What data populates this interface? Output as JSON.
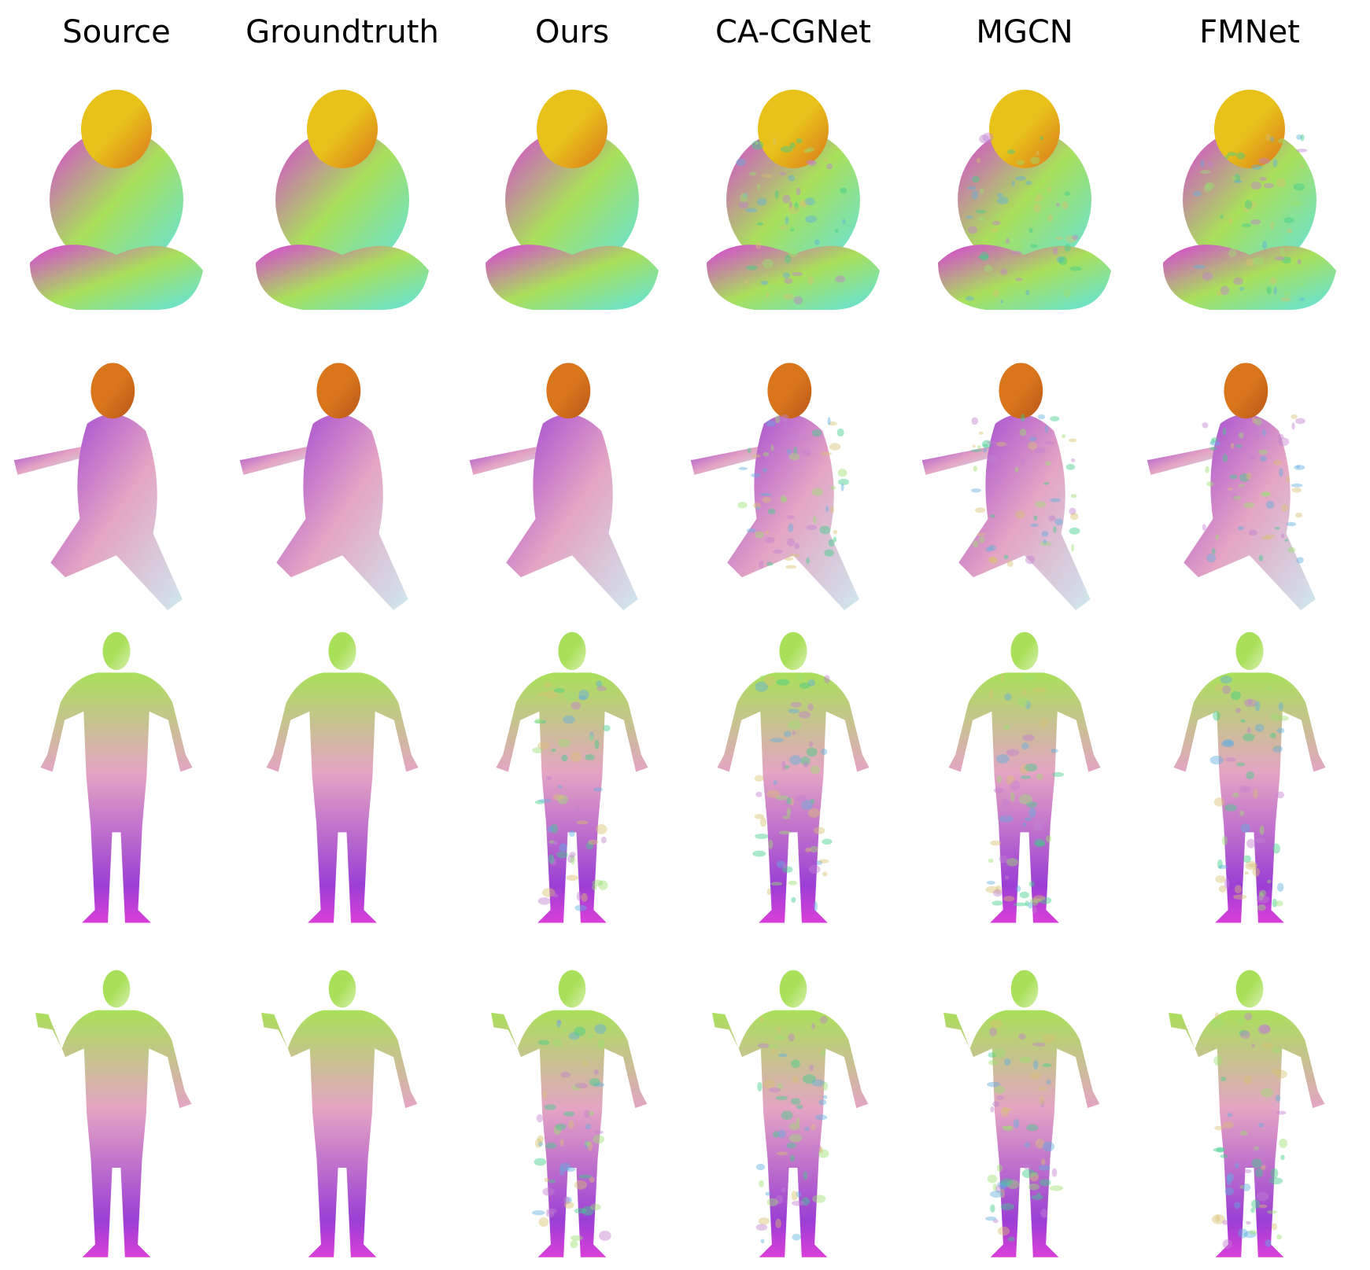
{
  "figure": {
    "columns": [
      {
        "label": "Source"
      },
      {
        "label": "Groundtruth"
      },
      {
        "label": "Ours"
      },
      {
        "label": "CA-CGNet"
      },
      {
        "label": "MGCN"
      },
      {
        "label": "FMNet"
      }
    ],
    "rows": [
      {
        "pose": "sitting-crossed-legs"
      },
      {
        "pose": "kneeling-arms-raised"
      },
      {
        "pose": "standing-arms-out"
      },
      {
        "pose": "standing-arm-bent"
      }
    ],
    "colors": {
      "yellow": "#e8c21a",
      "orange": "#d9761c",
      "magenta": "#d93fd9",
      "cyan": "#5fe3e3",
      "green": "#a9e05a",
      "pink": "#e4a4c4",
      "purple": "#9b3fd4"
    }
  }
}
